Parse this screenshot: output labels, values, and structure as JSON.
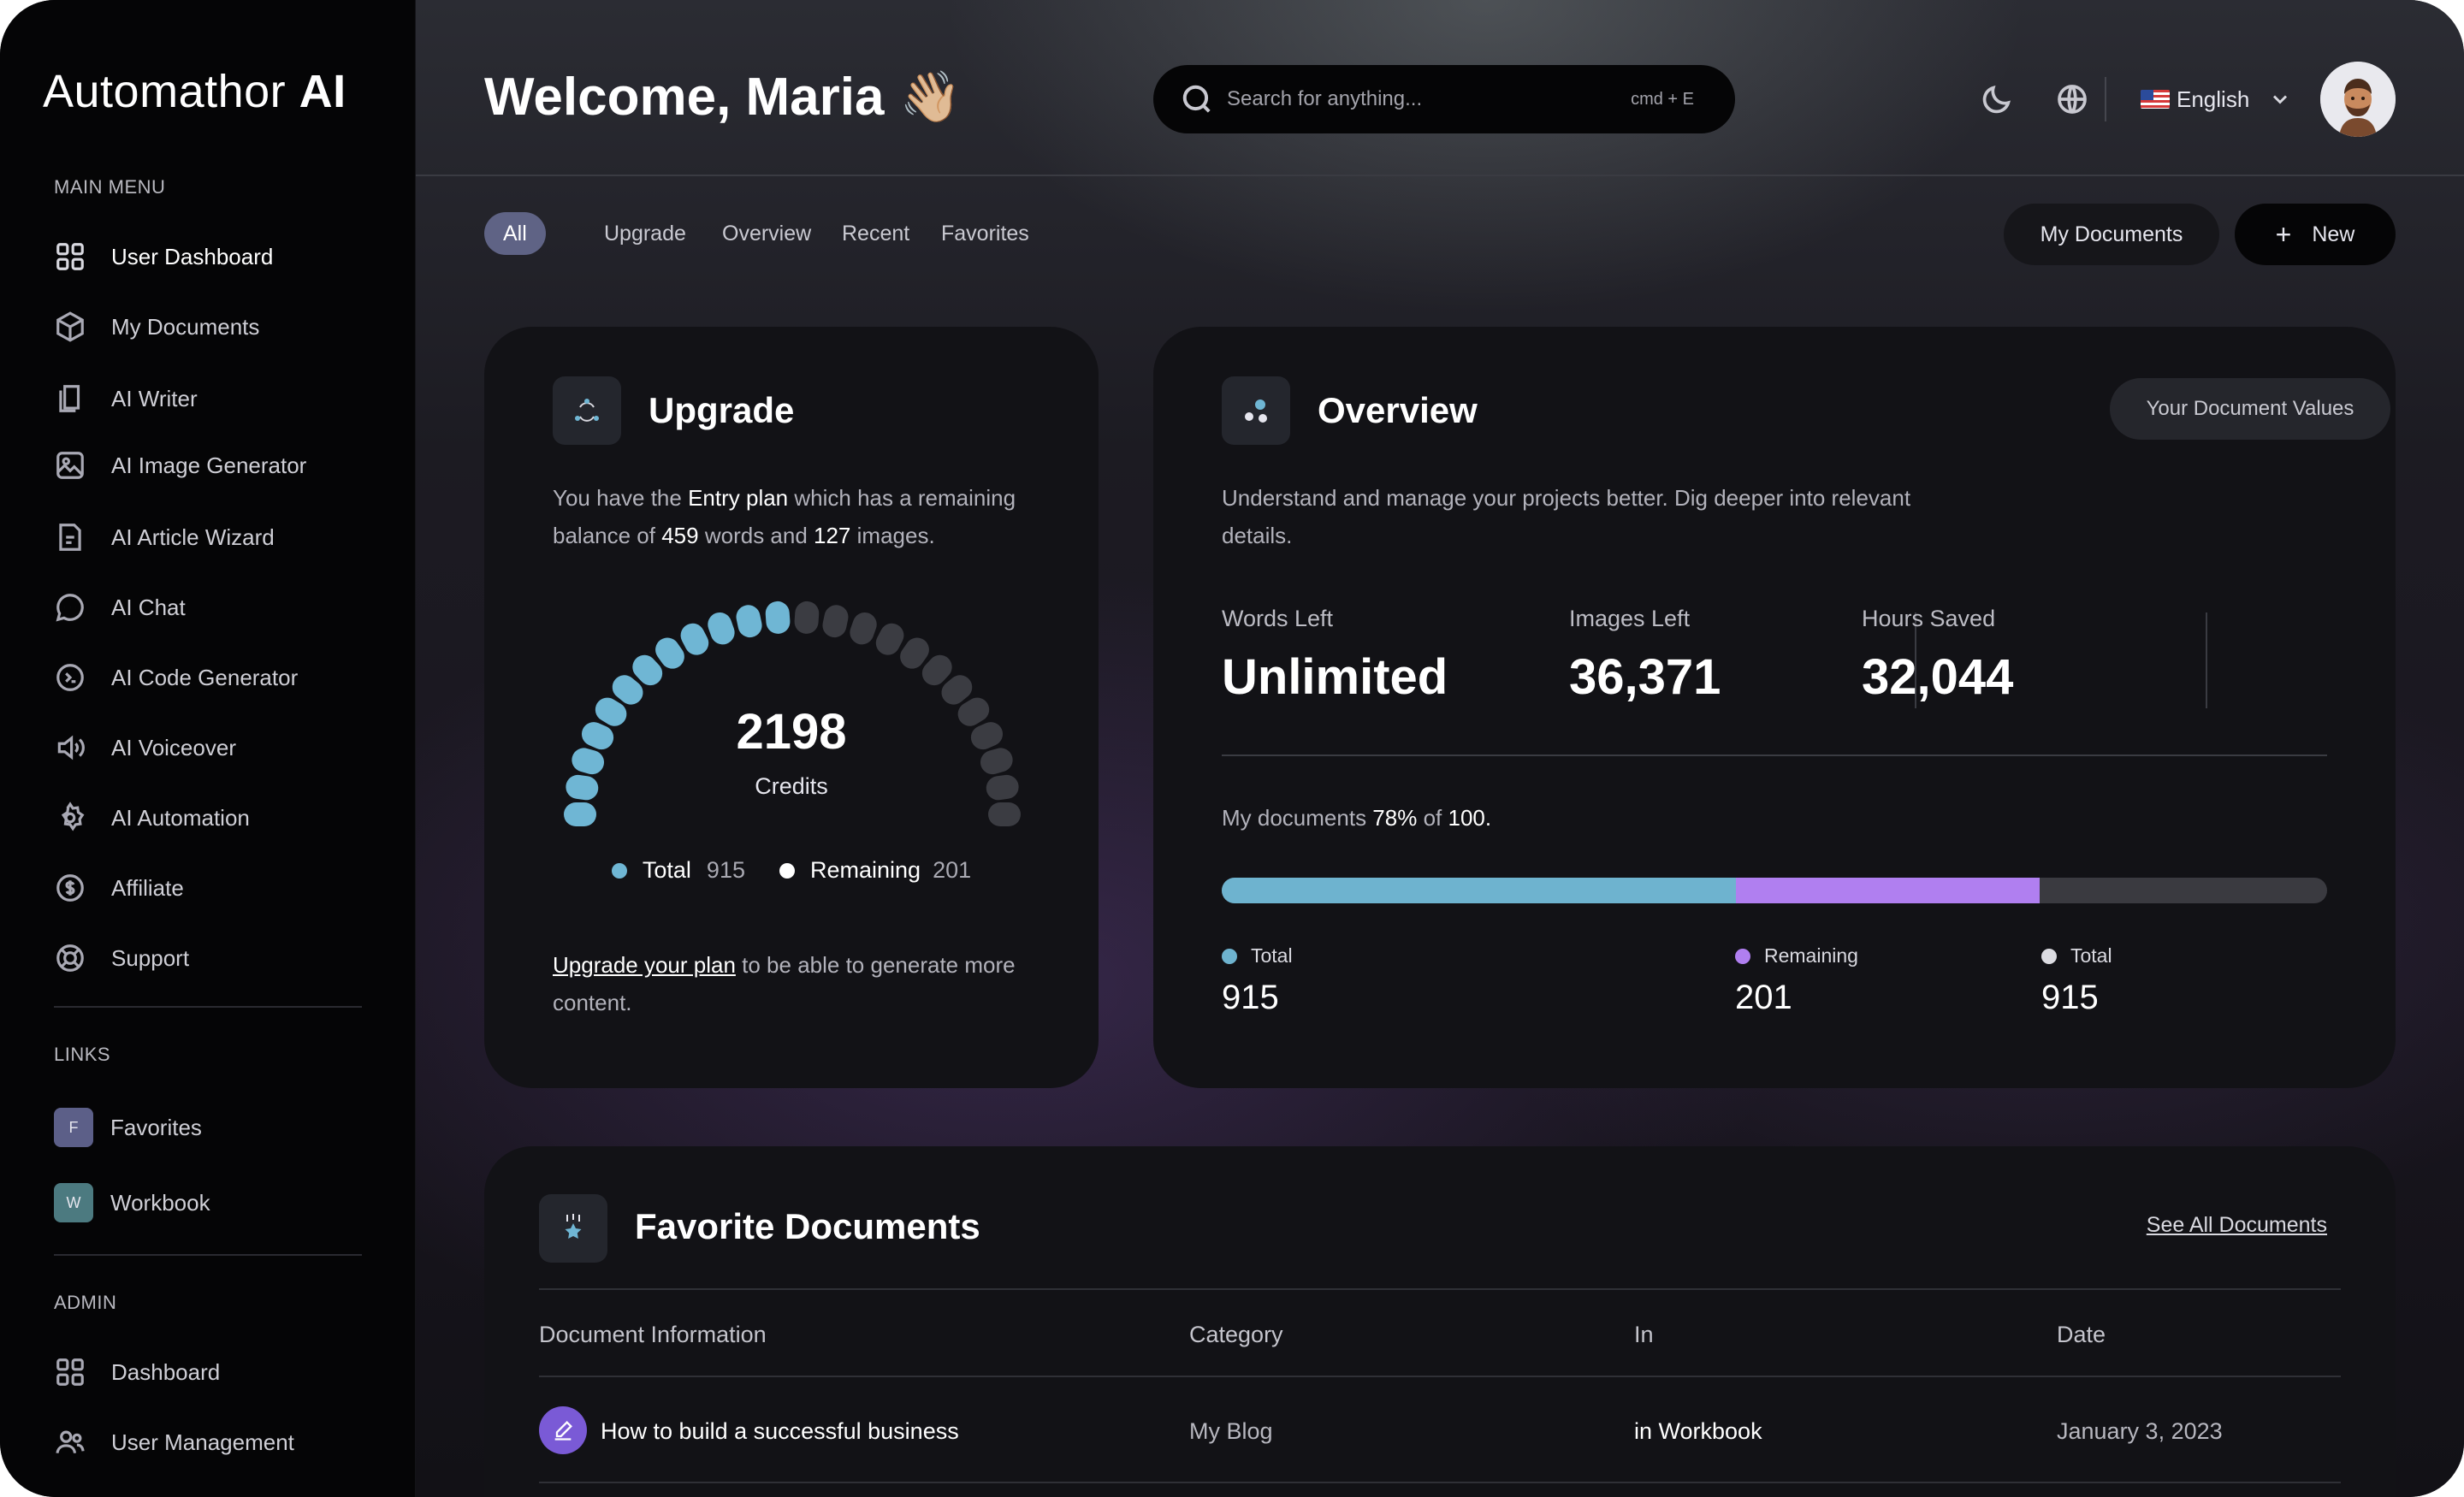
{
  "brand": {
    "name": "Automathor",
    "suffix": "AI"
  },
  "sidebar": {
    "main_menu_label": "MAIN MENU",
    "items": [
      {
        "label": "User Dashboard",
        "icon": "grid-icon"
      },
      {
        "label": "My Documents",
        "icon": "box-icon"
      },
      {
        "label": "AI Writer",
        "icon": "pages-icon"
      },
      {
        "label": "AI Image Generator",
        "icon": "image-icon"
      },
      {
        "label": "AI Article Wizard",
        "icon": "document-icon"
      },
      {
        "label": "AI Chat",
        "icon": "chat-icon"
      },
      {
        "label": "AI Code Generator",
        "icon": "terminal-icon"
      },
      {
        "label": "AI Voiceover",
        "icon": "speaker-icon"
      },
      {
        "label": "AI Automation",
        "icon": "gear-icon"
      },
      {
        "label": "Affiliate",
        "icon": "dollar-icon"
      },
      {
        "label": "Support",
        "icon": "lifebuoy-icon"
      }
    ],
    "links_label": "LINKS",
    "links": [
      {
        "badge": "F",
        "label": "Favorites",
        "color": "#5c5f88"
      },
      {
        "badge": "W",
        "label": "Workbook",
        "color": "#4c7a80"
      }
    ],
    "admin_label": "ADMIN",
    "admin_items": [
      {
        "label": "Dashboard",
        "icon": "grid-icon"
      },
      {
        "label": "User Management",
        "icon": "users-icon"
      }
    ]
  },
  "header": {
    "welcome": "Welcome, Maria",
    "wave_emoji": "👋🏼",
    "search_placeholder": "Search for anything...",
    "search_shortcut": "cmd + E",
    "language": "English"
  },
  "tabs": [
    {
      "label": "All",
      "active": true
    },
    {
      "label": "Upgrade",
      "active": false
    },
    {
      "label": "Overview",
      "active": false
    },
    {
      "label": "Recent",
      "active": false
    },
    {
      "label": "Favorites",
      "active": false
    }
  ],
  "actions": {
    "my_documents": "My Documents",
    "new_symbol": "+",
    "new": "New"
  },
  "upgrade": {
    "title": "Upgrade",
    "text_1": "You have the ",
    "plan": "Entry plan",
    "text_2": " which has a remaining",
    "text_3": "balance of ",
    "words": "459",
    "text_4": " words and ",
    "images": "127",
    "text_5": " images.",
    "credits_value": "2198",
    "credits_label": "Credits",
    "gauge_filled_fraction": 0.5,
    "legend": [
      {
        "label": "Total",
        "value": "915",
        "color": "#6fb6d4"
      },
      {
        "label": "Remaining",
        "value": "201",
        "color": "#ffffff"
      }
    ],
    "cta_link": "Upgrade your plan",
    "cta_text": " to be able to generate more",
    "cta_text_2": "content."
  },
  "overview": {
    "title": "Overview",
    "button": "Your Document Values",
    "desc_1": "Understand and manage your projects better. Dig deeper into relevant",
    "desc_2": "details.",
    "stats": [
      {
        "label": "Words Left",
        "value": "Unlimited"
      },
      {
        "label": "Images Left",
        "value": "36,371"
      },
      {
        "label": "Hours Saved",
        "value": "32,044"
      }
    ],
    "docs_text_1": "My documents ",
    "docs_percent": "78%",
    "docs_text_2": " of ",
    "docs_total": "100.",
    "progress": [
      {
        "fraction": 0.465,
        "color": "#6eb3cf"
      },
      {
        "fraction": 0.275,
        "color": "#b07ff0"
      }
    ],
    "progress_track_color": "#3a3a40",
    "legend": [
      {
        "label": "Total",
        "value": "915",
        "color": "#6eb3cf"
      },
      {
        "label": "Remaining",
        "value": "201",
        "color": "#b07ff0"
      },
      {
        "label": "Total",
        "value": "915",
        "color": "#dcdce2"
      }
    ]
  },
  "favorites": {
    "title": "Favorite Documents",
    "see_all": "See All Documents",
    "columns": [
      "Document Information",
      "Category",
      "In",
      "Date"
    ],
    "rows": [
      {
        "title": "How to build a successful business",
        "category": "My Blog",
        "in": "in Workbook",
        "date": "January 3, 2023"
      }
    ]
  }
}
